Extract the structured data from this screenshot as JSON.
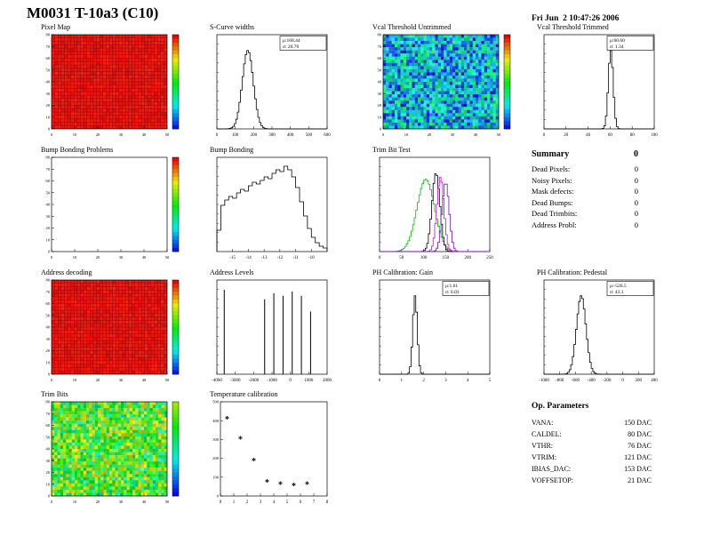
{
  "header": {
    "title": "M0031 T-10a3 (C10)",
    "date": "Fri Jun  2 10:47:26 2006"
  },
  "summary": {
    "title": "Summary",
    "total": "0",
    "rows": [
      {
        "label": "Dead Pixels:",
        "value": "0"
      },
      {
        "label": "Noisy Pixels:",
        "value": "0"
      },
      {
        "label": "Mask defects:",
        "value": "0"
      },
      {
        "label": "Dead Bumps:",
        "value": "0"
      },
      {
        "label": "Dead Trimbits:",
        "value": "0"
      },
      {
        "label": "Address Probl:",
        "value": "0"
      }
    ]
  },
  "op_parameters": {
    "title": "Op. Parameters",
    "rows": [
      {
        "label": "VANA:",
        "value": "150 DAC"
      },
      {
        "label": "CALDEL:",
        "value": "80 DAC"
      },
      {
        "label": "VTHR:",
        "value": "76 DAC"
      },
      {
        "label": "VTRIM:",
        "value": "121 DAC"
      },
      {
        "label": "IBIAS_DAC:",
        "value": "153 DAC"
      },
      {
        "label": "VOFFSETOP:",
        "value": "21 DAC"
      }
    ]
  },
  "chart_data": [
    {
      "id": "pixel_map",
      "title": "Pixel Map",
      "type": "heatmap",
      "palette": "red",
      "seed": 11,
      "xlim": [
        0,
        50
      ],
      "ylim": [
        0,
        80
      ],
      "xticks": [
        0,
        10,
        20,
        30,
        40,
        50
      ],
      "yticks": [
        0,
        10,
        20,
        30,
        40,
        50,
        60,
        70,
        80
      ],
      "colorbar": "rainbow"
    },
    {
      "id": "scurve_widths",
      "title": "S-Curve widths",
      "type": "histogram",
      "xlim": [
        0,
        600
      ],
      "xticks": [
        0,
        100,
        200,
        300,
        400,
        500,
        600
      ],
      "mean": 168.44,
      "rms": 30,
      "stats": {
        "mu": "168.44",
        "sigma": "20.76"
      }
    },
    {
      "id": "vcal_threshold_untrimmed",
      "title": "Vcal Threshold Untrimmed",
      "type": "heatmap",
      "palette": "cool",
      "seed": 7,
      "xlim": [
        0,
        50
      ],
      "ylim": [
        0,
        80
      ],
      "xticks": [
        0,
        10,
        20,
        30,
        40,
        50
      ],
      "yticks": [
        0,
        10,
        20,
        30,
        40,
        50,
        60,
        70,
        80
      ],
      "colorbar": "rainbow"
    },
    {
      "id": "vcal_threshold_trimmed",
      "title": "Vcal Threshold Trimmed",
      "type": "histogram",
      "xlim": [
        0,
        100
      ],
      "xticks": [
        0,
        20,
        40,
        60,
        80,
        100
      ],
      "mean": 60.6,
      "rms": 2.2,
      "stats": {
        "mu": "60.60",
        "sigma": "1.34"
      }
    },
    {
      "id": "bump_bonding_problems",
      "title": "Bump Bonding Problems",
      "type": "heatmap",
      "palette": "empty",
      "seed": 3,
      "xlim": [
        0,
        50
      ],
      "ylim": [
        0,
        80
      ],
      "xticks": [
        0,
        10,
        20,
        30,
        40,
        50
      ],
      "yticks": [
        0,
        10,
        20,
        30,
        40,
        50,
        60,
        70,
        80
      ],
      "colorbar": "rainbow"
    },
    {
      "id": "bump_bonding",
      "title": "Bump Bonding",
      "type": "step_histogram",
      "xlim": [
        -16,
        -9
      ],
      "xticks": [
        -15,
        -14,
        -13,
        -12,
        -11,
        -10
      ],
      "bins": [
        1.2,
        2.6,
        2.9,
        3.1,
        3.0,
        3.3,
        3.5,
        3.4,
        3.7,
        3.9,
        3.8,
        4.0,
        4.2,
        4.1,
        4.4,
        4.6,
        4.5,
        4.8,
        4.6,
        4.2,
        3.6,
        2.8,
        2.0,
        1.3,
        0.8,
        0.5,
        0.3,
        0.2
      ]
    },
    {
      "id": "trim_bit_test",
      "title": "Trim Bit Test",
      "type": "multi_histogram",
      "xlim": [
        0,
        250
      ],
      "xticks": [
        0,
        50,
        100,
        150,
        200,
        250
      ],
      "series": [
        {
          "color": "#00bb00",
          "mean": 105,
          "rms": 20,
          "height": 0.92
        },
        {
          "color": "#000000",
          "mean": 128,
          "rms": 9,
          "height": 1.0
        },
        {
          "color": "#dd00dd",
          "mean": 138,
          "rms": 8,
          "height": 0.95
        },
        {
          "color": "#6a0dd0",
          "mean": 150,
          "rms": 8,
          "height": 0.88
        }
      ]
    },
    {
      "id": "address_decoding",
      "title": "Address decoding",
      "type": "heatmap",
      "palette": "red",
      "seed": 21,
      "xlim": [
        0,
        50
      ],
      "ylim": [
        0,
        80
      ],
      "xticks": [
        0,
        10,
        20,
        30,
        40,
        50
      ],
      "yticks": [
        0,
        10,
        20,
        30,
        40,
        50,
        60,
        70,
        80
      ],
      "colorbar": "rainbow"
    },
    {
      "id": "address_levels",
      "title": "Address Levels",
      "type": "spikes",
      "xlim": [
        -4000,
        2000
      ],
      "xticks": [
        -4000,
        -3000,
        -2000,
        -1000,
        0,
        1000,
        2000
      ],
      "spikes": [
        {
          "x": -3600,
          "h": 0.97
        },
        {
          "x": -1400,
          "h": 0.86
        },
        {
          "x": -900,
          "h": 0.93
        },
        {
          "x": -400,
          "h": 0.9
        },
        {
          "x": 100,
          "h": 0.95
        },
        {
          "x": 600,
          "h": 0.9
        },
        {
          "x": 1100,
          "h": 0.72
        }
      ]
    },
    {
      "id": "ph_calibration_gain",
      "title": "PH Calibration: Gain",
      "type": "histogram",
      "xlim": [
        0,
        5
      ],
      "xticks": [
        0,
        1,
        2,
        3,
        4,
        5
      ],
      "mean": 1.61,
      "rms": 0.1,
      "stats": {
        "mu": "1.61",
        "sigma": "0.03"
      }
    },
    {
      "id": "ph_calibration_pedestal",
      "title": "PH Calibration: Pedestal",
      "type": "histogram",
      "xlim": [
        -1000,
        400
      ],
      "xticks": [
        -1000,
        -800,
        -600,
        -400,
        -200,
        0,
        200,
        400
      ],
      "mean": -526.5,
      "rms": 60,
      "stats": {
        "mu": "-526.5",
        "sigma": "43.1"
      }
    },
    {
      "id": "trim_bits",
      "title": "Trim Bits",
      "type": "heatmap",
      "palette": "green",
      "seed": 5,
      "xlim": [
        0,
        50
      ],
      "ylim": [
        0,
        80
      ],
      "xticks": [
        0,
        10,
        20,
        30,
        40,
        50
      ],
      "yticks": [
        0,
        10,
        20,
        30,
        40,
        50,
        60,
        70,
        80
      ],
      "colorbar": "green-blue"
    },
    {
      "id": "temperature_calibration",
      "title": "Temperature calibration",
      "type": "scatter",
      "marker": "*",
      "xlim": [
        0,
        8
      ],
      "xticks": [
        0,
        1,
        2,
        3,
        4,
        5,
        6,
        7,
        8
      ],
      "ylim": [
        0,
        500
      ],
      "yticks": [
        0,
        100,
        200,
        300,
        400,
        500
      ],
      "points": [
        [
          0.5,
          405
        ],
        [
          1.5,
          300
        ],
        [
          2.5,
          185
        ],
        [
          3.5,
          70
        ],
        [
          4.5,
          60
        ],
        [
          5.5,
          52
        ],
        [
          6.5,
          60
        ]
      ]
    }
  ]
}
